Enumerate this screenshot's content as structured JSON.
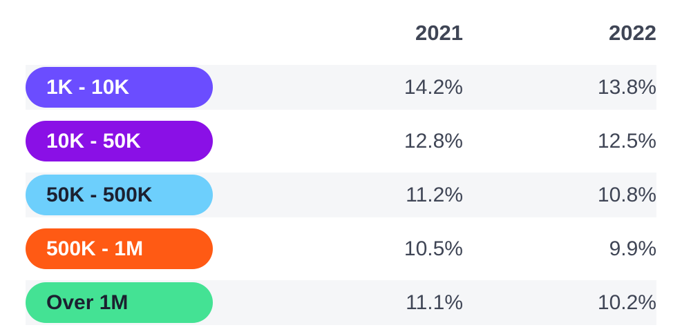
{
  "chart_data": {
    "type": "table",
    "columns": [
      "2021",
      "2022"
    ],
    "rows": [
      {
        "label": "1K - 10K",
        "color": "#6b4dff",
        "text_color": "#ffffff",
        "values": [
          "14.2%",
          "13.8%"
        ]
      },
      {
        "label": "10K - 50K",
        "color": "#8a10e6",
        "text_color": "#ffffff",
        "values": [
          "12.8%",
          "12.5%"
        ]
      },
      {
        "label": "50K - 500K",
        "color": "#6dcffc",
        "text_color": "#1c2030",
        "values": [
          "11.2%",
          "10.8%"
        ]
      },
      {
        "label": "500K - 1M",
        "color": "#ff5a14",
        "text_color": "#ffffff",
        "values": [
          "10.5%",
          "9.9%"
        ]
      },
      {
        "label": "Over 1M",
        "color": "#44e294",
        "text_color": "#1c2030",
        "values": [
          "11.1%",
          "10.2%"
        ]
      }
    ]
  }
}
